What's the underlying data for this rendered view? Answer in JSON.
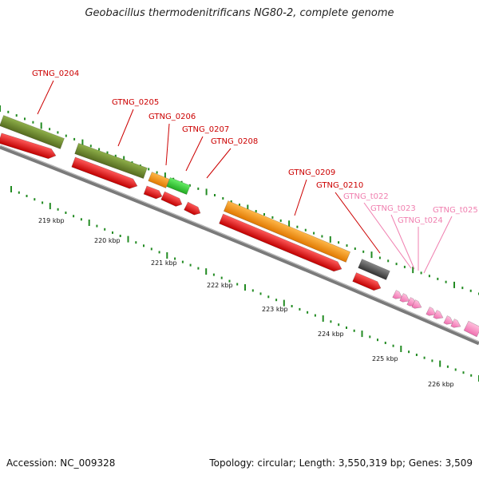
{
  "title": "Geobacillus thermodenitrificans NG80-2, complete genome",
  "footer": {
    "accession": "Accession: NC_009328",
    "summary": "Topology: circular; Length: 3,550,319 bp; Genes: 3,509"
  },
  "colors": {
    "backbone": "#808080",
    "gene_red": "#e8000e",
    "label_red": "#cc0000",
    "label_pink": "#f080b0",
    "olive": "#6b8e23",
    "orange": "#ff9900",
    "green": "#33cc33",
    "gray": "#555555",
    "pink": "#ff99cc",
    "tick": "#228b22"
  },
  "scale": {
    "labels": [
      "219 kbp",
      "220 kbp",
      "221 kbp",
      "222 kbp",
      "223 kbp",
      "224 kbp",
      "225 kbp",
      "226 kbp"
    ]
  },
  "genes": [
    {
      "label": "GTNG_0204",
      "type": "cds"
    },
    {
      "label": "GTNG_0205",
      "type": "cds"
    },
    {
      "label": "GTNG_0206",
      "type": "cds"
    },
    {
      "label": "GTNG_0207",
      "type": "cds"
    },
    {
      "label": "GTNG_0208",
      "type": "cds"
    },
    {
      "label": "GTNG_0209",
      "type": "cds"
    },
    {
      "label": "GTNG_0210",
      "type": "cds"
    },
    {
      "label": "GTNG_t022",
      "type": "trna"
    },
    {
      "label": "GTNG_t023",
      "type": "trna"
    },
    {
      "label": "GTNG_t024",
      "type": "trna"
    },
    {
      "label": "GTNG_t025",
      "type": "trna"
    }
  ]
}
